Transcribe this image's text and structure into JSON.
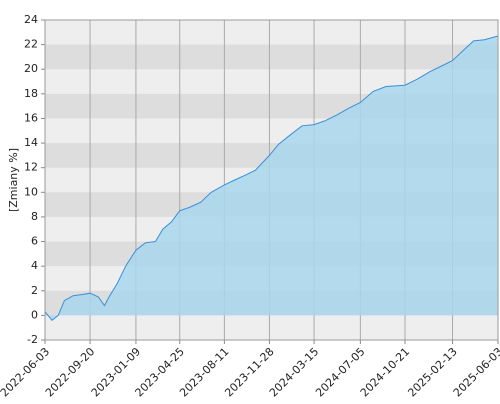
{
  "chart_data": {
    "type": "area",
    "y_label": "[Zmiany %]",
    "x": [
      "2022-06-03",
      "2022-06-20",
      "2022-07-05",
      "2022-07-20",
      "2022-08-10",
      "2022-09-01",
      "2022-09-20",
      "2022-10-10",
      "2022-10-25",
      "2022-11-05",
      "2022-11-25",
      "2022-12-15",
      "2023-01-09",
      "2023-02-01",
      "2023-02-25",
      "2023-03-15",
      "2023-04-05",
      "2023-04-25",
      "2023-05-20",
      "2023-06-15",
      "2023-07-10",
      "2023-08-11",
      "2023-09-05",
      "2023-10-01",
      "2023-10-25",
      "2023-11-28",
      "2023-12-20",
      "2024-01-15",
      "2024-02-15",
      "2024-03-15",
      "2024-04-10",
      "2024-05-10",
      "2024-06-05",
      "2024-07-05",
      "2024-08-05",
      "2024-09-05",
      "2024-10-21",
      "2024-11-20",
      "2024-12-20",
      "2025-01-20",
      "2025-02-13",
      "2025-03-10",
      "2025-04-05",
      "2025-05-01",
      "2025-06-03"
    ],
    "values": [
      0.3,
      -0.4,
      0,
      1.2,
      1.6,
      1.7,
      1.8,
      1.5,
      0.8,
      1.5,
      2.6,
      4.0,
      5.3,
      5.9,
      6.0,
      7.0,
      7.6,
      8.5,
      8.8,
      9.2,
      10.0,
      10.6,
      11.0,
      11.4,
      11.8,
      13.0,
      13.9,
      14.6,
      15.4,
      15.5,
      15.8,
      16.3,
      16.8,
      17.3,
      18.2,
      18.6,
      18.7,
      19.2,
      19.8,
      20.3,
      20.7,
      21.5,
      22.3,
      22.4,
      22.7
    ],
    "line_color": "#3a8fd8",
    "fill_color": "#a9d6ec",
    "xlim": [
      "2022-06-03",
      "2025-06-03"
    ],
    "xticks": [
      "2022-06-03",
      "2022-09-20",
      "2023-01-09",
      "2023-04-25",
      "2023-08-11",
      "2023-11-28",
      "2024-03-15",
      "2024-07-05",
      "2024-10-21",
      "2025-02-13",
      "2025-06-03"
    ],
    "ylim": [
      -2,
      24
    ],
    "yticks": [
      -2,
      0,
      2,
      4,
      6,
      8,
      10,
      12,
      14,
      16,
      18,
      20,
      22,
      24
    ],
    "grid": true
  }
}
